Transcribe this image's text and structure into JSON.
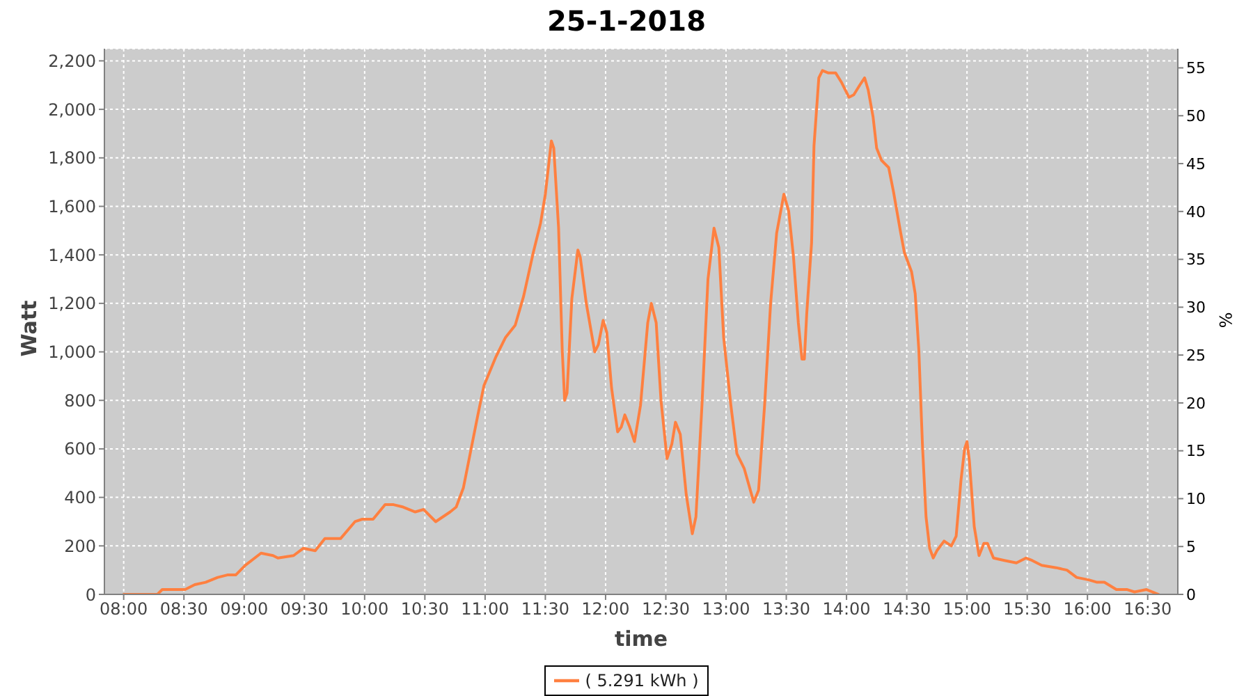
{
  "chart_data": {
    "type": "line",
    "title": "25-1-2018",
    "xlabel": "time",
    "ylabel": "Watt",
    "y2label": "%",
    "x": [
      8.0,
      8.28,
      8.32,
      8.51,
      8.59,
      8.68,
      8.78,
      8.86,
      8.93,
      9.01,
      9.14,
      9.24,
      9.28,
      9.41,
      9.49,
      9.59,
      9.67,
      9.8,
      9.92,
      9.98,
      10.07,
      10.17,
      10.24,
      10.32,
      10.42,
      10.49,
      10.59,
      10.71,
      10.76,
      10.82,
      10.88,
      10.94,
      10.99,
      11.09,
      11.17,
      11.25,
      11.32,
      11.4,
      11.46,
      11.5,
      11.55,
      11.57,
      11.61,
      11.64,
      11.66,
      11.68,
      11.72,
      11.77,
      11.79,
      11.84,
      11.91,
      11.94,
      11.98,
      12.01,
      12.05,
      12.1,
      12.13,
      12.16,
      12.2,
      12.24,
      12.29,
      12.35,
      12.38,
      12.42,
      12.46,
      12.51,
      12.55,
      12.58,
      12.62,
      12.67,
      12.72,
      12.75,
      12.8,
      12.85,
      12.9,
      12.94,
      12.98,
      13.04,
      13.09,
      13.15,
      13.23,
      13.27,
      13.32,
      13.37,
      13.42,
      13.48,
      13.52,
      13.56,
      13.6,
      13.63,
      13.65,
      13.67,
      13.71,
      13.73,
      13.77,
      13.8,
      13.85,
      13.91,
      13.96,
      14.02,
      14.06,
      14.11,
      14.15,
      14.18,
      14.22,
      14.25,
      14.29,
      14.35,
      14.39,
      14.45,
      14.48,
      14.54,
      14.57,
      14.6,
      14.63,
      14.66,
      14.69,
      14.72,
      14.75,
      14.81,
      14.87,
      14.91,
      14.95,
      14.98,
      15.0,
      15.02,
      15.06,
      15.1,
      15.14,
      15.17,
      15.22,
      15.31,
      15.41,
      15.49,
      15.54,
      15.62,
      15.74,
      15.83,
      15.91,
      16.01,
      16.08,
      16.14,
      16.24,
      16.33,
      16.39,
      16.49,
      16.59
    ],
    "series": [
      {
        "name": "( 5.291 kWh )",
        "color": "#ff8040",
        "values": [
          0,
          0,
          20,
          20,
          40,
          50,
          70,
          80,
          80,
          120,
          170,
          160,
          150,
          160,
          190,
          180,
          230,
          230,
          300,
          310,
          310,
          370,
          370,
          360,
          340,
          350,
          300,
          340,
          360,
          440,
          590,
          740,
          860,
          980,
          1060,
          1110,
          1230,
          1410,
          1530,
          1650,
          1870,
          1840,
          1510,
          1010,
          800,
          830,
          1220,
          1420,
          1390,
          1200,
          1000,
          1030,
          1130,
          1080,
          850,
          670,
          690,
          740,
          690,
          630,
          780,
          1120,
          1200,
          1120,
          800,
          560,
          620,
          710,
          660,
          410,
          250,
          320,
          780,
          1300,
          1510,
          1430,
          1060,
          780,
          580,
          520,
          380,
          430,
          780,
          1200,
          1490,
          1650,
          1580,
          1390,
          1120,
          970,
          970,
          1160,
          1450,
          1850,
          2130,
          2160,
          2150,
          2150,
          2110,
          2050,
          2060,
          2100,
          2130,
          2080,
          1970,
          1840,
          1790,
          1760,
          1660,
          1490,
          1410,
          1330,
          1240,
          1010,
          620,
          320,
          190,
          150,
          180,
          220,
          200,
          240,
          470,
          600,
          630,
          550,
          280,
          160,
          210,
          210,
          150,
          140,
          130,
          150,
          140,
          120,
          110,
          100,
          70,
          60,
          50,
          50,
          20,
          20,
          10,
          20,
          0
        ]
      }
    ],
    "xlim": [
      7.84,
      16.75
    ],
    "xticks": [
      {
        "value": 8,
        "label": "08:00"
      },
      {
        "value": 8.5,
        "label": "08:30"
      },
      {
        "value": 9,
        "label": "09:00"
      },
      {
        "value": 9.5,
        "label": "09:30"
      },
      {
        "value": 10,
        "label": "10:00"
      },
      {
        "value": 10.5,
        "label": "10:30"
      },
      {
        "value": 11,
        "label": "11:00"
      },
      {
        "value": 11.5,
        "label": "11:30"
      },
      {
        "value": 12,
        "label": "12:00"
      },
      {
        "value": 12.5,
        "label": "12:30"
      },
      {
        "value": 13,
        "label": "13:00"
      },
      {
        "value": 13.5,
        "label": "13:30"
      },
      {
        "value": 14,
        "label": "14:00"
      },
      {
        "value": 14.5,
        "label": "14:30"
      },
      {
        "value": 15,
        "label": "15:00"
      },
      {
        "value": 15.5,
        "label": "15:30"
      },
      {
        "value": 16,
        "label": "16:00"
      },
      {
        "value": 16.5,
        "label": "16:30"
      }
    ],
    "ylim": [
      0,
      2250
    ],
    "yticks": [
      0,
      200,
      400,
      600,
      800,
      {
        "value": 1000,
        "label": "1,000"
      },
      {
        "value": 1200,
        "label": "1,200"
      },
      {
        "value": 1400,
        "label": "1,400"
      },
      {
        "value": 1600,
        "label": "1,600"
      },
      {
        "value": 1800,
        "label": "1,800"
      },
      {
        "value": 2000,
        "label": "2,000"
      },
      {
        "value": 2200,
        "label": "2,200"
      }
    ],
    "y2lim": [
      0,
      57
    ],
    "y2ticks": [
      0,
      5,
      10,
      15,
      20,
      25,
      30,
      35,
      40,
      45,
      50,
      55
    ],
    "grid": true,
    "legend": "bottom",
    "marker": "none",
    "line_style": "solid"
  }
}
